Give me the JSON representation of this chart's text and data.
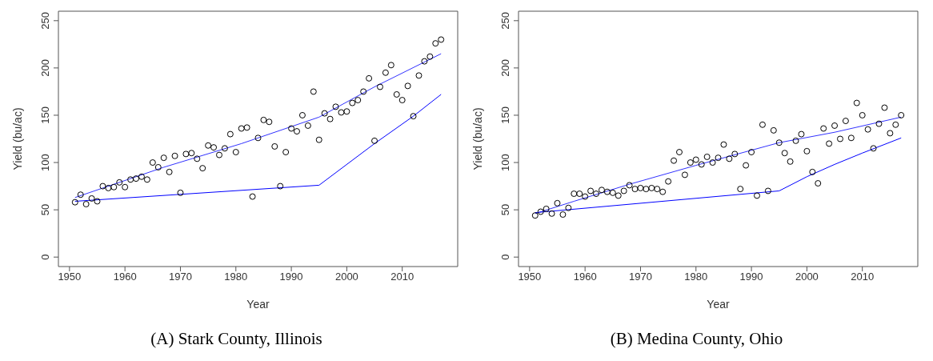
{
  "chart_data": [
    {
      "type": "scatter",
      "title": "(A) Stark County, Illinois",
      "xlabel": "Year",
      "ylabel": "Yield (bu/ac)",
      "xlim": [
        1948,
        2020
      ],
      "xticks": [
        1950,
        1960,
        1970,
        1980,
        1990,
        2000,
        2010
      ],
      "ylim": [
        -10,
        260
      ],
      "yticks": [
        0,
        50,
        100,
        150,
        200,
        250
      ],
      "series": [
        {
          "marker": "circle",
          "color": "#000000",
          "x": [
            1951,
            1952,
            1953,
            1954,
            1955,
            1956,
            1957,
            1958,
            1959,
            1960,
            1961,
            1962,
            1963,
            1964,
            1965,
            1966,
            1967,
            1968,
            1969,
            1970,
            1971,
            1972,
            1973,
            1974,
            1975,
            1976,
            1977,
            1978,
            1979,
            1980,
            1981,
            1982,
            1983,
            1984,
            1985,
            1986,
            1987,
            1988,
            1989,
            1990,
            1991,
            1992,
            1993,
            1994,
            1995,
            1996,
            1997,
            1998,
            1999,
            2000,
            2001,
            2002,
            2003,
            2004,
            2005,
            2006,
            2007,
            2008,
            2009,
            2010,
            2011,
            2012,
            2013,
            2014,
            2015,
            2016,
            2017
          ],
          "values": [
            58,
            66,
            56,
            62,
            59,
            75,
            73,
            74,
            79,
            74,
            82,
            83,
            85,
            82,
            100,
            95,
            105,
            90,
            107,
            68,
            109,
            110,
            104,
            94,
            118,
            116,
            108,
            115,
            130,
            111,
            136,
            137,
            64,
            126,
            145,
            143,
            117,
            75,
            111,
            136,
            133,
            150,
            139,
            175,
            124,
            152,
            146,
            159,
            153,
            154,
            163,
            166,
            175,
            189,
            123,
            180,
            195,
            203,
            172,
            166,
            181,
            149,
            192,
            207,
            212,
            226,
            230
          ]
        },
        {
          "type": "line",
          "marker": "none",
          "color": "#3333ff",
          "x": [
            1951,
            1967,
            1981,
            1995,
            2005,
            2017
          ],
          "values": [
            63,
            95,
            120,
            148,
            180,
            215
          ]
        },
        {
          "type": "line",
          "marker": "none",
          "color": "#0000ff",
          "x": [
            1951,
            1995,
            2005,
            2012,
            2017
          ],
          "values": [
            59,
            76,
            120,
            149,
            172
          ]
        }
      ]
    },
    {
      "type": "scatter",
      "title": "(B) Medina County, Ohio",
      "xlabel": "Year",
      "ylabel": "Yield (bu/ac)",
      "xlim": [
        1948,
        2020
      ],
      "xticks": [
        1950,
        1960,
        1970,
        1980,
        1990,
        2000,
        2010
      ],
      "ylim": [
        -10,
        260
      ],
      "yticks": [
        0,
        50,
        100,
        150,
        200,
        250
      ],
      "series": [
        {
          "marker": "circle",
          "color": "#000000",
          "x": [
            1951,
            1952,
            1953,
            1954,
            1955,
            1956,
            1957,
            1958,
            1959,
            1960,
            1961,
            1962,
            1963,
            1964,
            1965,
            1966,
            1967,
            1968,
            1969,
            1970,
            1971,
            1972,
            1973,
            1974,
            1975,
            1976,
            1977,
            1978,
            1979,
            1980,
            1981,
            1982,
            1983,
            1984,
            1985,
            1986,
            1987,
            1988,
            1989,
            1990,
            1991,
            1992,
            1993,
            1994,
            1995,
            1996,
            1997,
            1998,
            1999,
            2000,
            2001,
            2002,
            2003,
            2004,
            2005,
            2006,
            2007,
            2008,
            2009,
            2010,
            2011,
            2012,
            2013,
            2014,
            2015,
            2016,
            2017
          ],
          "values": [
            44,
            48,
            51,
            46,
            57,
            45,
            52,
            67,
            67,
            64,
            70,
            67,
            71,
            69,
            68,
            65,
            70,
            76,
            72,
            73,
            72,
            73,
            72,
            69,
            80,
            102,
            111,
            87,
            100,
            103,
            98,
            106,
            100,
            105,
            119,
            104,
            109,
            72,
            97,
            111,
            65,
            140,
            70,
            134,
            121,
            110,
            101,
            123,
            130,
            112,
            90,
            78,
            136,
            120,
            139,
            125,
            144,
            126,
            163,
            150,
            135,
            115,
            141,
            158,
            131,
            140,
            150
          ]
        },
        {
          "type": "line",
          "marker": "none",
          "color": "#3333ff",
          "x": [
            1951,
            1958,
            1968,
            1980,
            1990,
            1995,
            2005,
            2017
          ],
          "values": [
            46,
            59,
            77,
            97,
            113,
            121,
            132,
            148
          ]
        },
        {
          "type": "line",
          "marker": "none",
          "color": "#0000ff",
          "x": [
            1951,
            1995,
            2000,
            2005,
            2010,
            2017
          ],
          "values": [
            47,
            70,
            85,
            98,
            110,
            126
          ]
        }
      ]
    }
  ]
}
